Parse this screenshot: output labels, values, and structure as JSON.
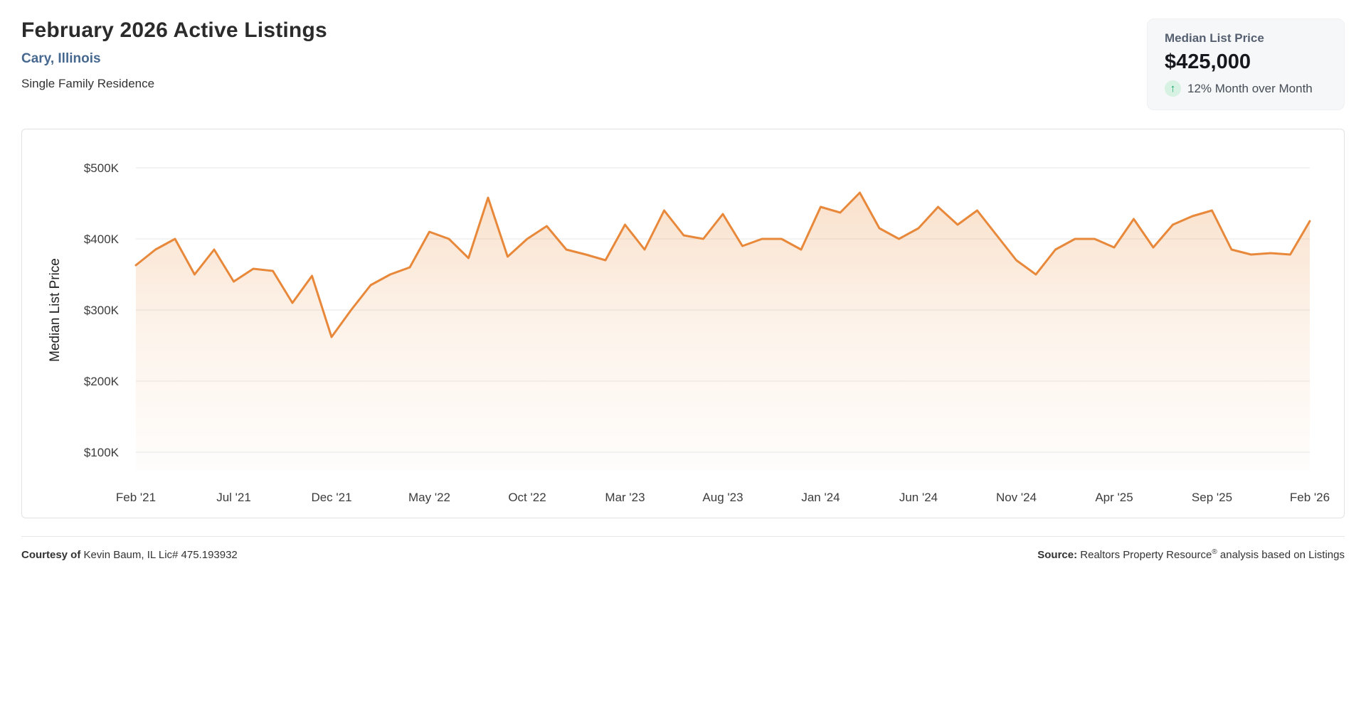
{
  "header": {
    "title": "February 2026 Active Listings",
    "location": "Cary, Illinois",
    "property_type": "Single Family Residence"
  },
  "stat_card": {
    "label": "Median List Price",
    "value": "$425,000",
    "arrow_icon": "arrow-up-icon",
    "arrow_glyph": "↑",
    "change": "12% Month over Month",
    "change_icon_color": "#13a467",
    "change_icon_bg": "#d7f2e3"
  },
  "chart_data": {
    "type": "area",
    "title": "",
    "xlabel": "",
    "ylabel": "Median List Price",
    "x": [
      "Feb '21",
      "Mar '21",
      "Apr '21",
      "May '21",
      "Jun '21",
      "Jul '21",
      "Aug '21",
      "Sep '21",
      "Oct '21",
      "Nov '21",
      "Dec '21",
      "Jan '22",
      "Feb '22",
      "Mar '22",
      "Apr '22",
      "May '22",
      "Jun '22",
      "Jul '22",
      "Aug '22",
      "Sep '22",
      "Oct '22",
      "Nov '22",
      "Dec '22",
      "Jan '23",
      "Feb '23",
      "Mar '23",
      "Apr '23",
      "May '23",
      "Jun '23",
      "Jul '23",
      "Aug '23",
      "Sep '23",
      "Oct '23",
      "Nov '23",
      "Dec '23",
      "Jan '24",
      "Feb '24",
      "Mar '24",
      "Apr '24",
      "May '24",
      "Jun '24",
      "Jul '24",
      "Aug '24",
      "Sep '24",
      "Oct '24",
      "Nov '24",
      "Dec '24",
      "Jan '25",
      "Feb '25",
      "Mar '25",
      "Apr '25",
      "May '25",
      "Jun '25",
      "Jul '25",
      "Aug '25",
      "Sep '25",
      "Oct '25",
      "Nov '25",
      "Dec '25",
      "Jan '26",
      "Feb '26"
    ],
    "values": [
      363,
      385,
      400,
      350,
      385,
      340,
      358,
      355,
      310,
      348,
      262,
      300,
      335,
      350,
      360,
      410,
      400,
      373,
      458,
      375,
      400,
      418,
      385,
      378,
      370,
      420,
      385,
      440,
      405,
      400,
      435,
      390,
      400,
      400,
      385,
      445,
      437,
      465,
      415,
      400,
      415,
      445,
      420,
      440,
      405,
      370,
      350,
      385,
      400,
      400,
      388,
      428,
      388,
      420,
      432,
      440,
      385,
      378,
      380,
      378,
      425
    ],
    "units": "thousand USD",
    "ylim": [
      75,
      525
    ],
    "yticks": [
      100,
      200,
      300,
      400,
      500
    ],
    "ytick_labels": [
      "$100K",
      "$200K",
      "$300K",
      "$400K",
      "$500K"
    ],
    "xtick_every": 5,
    "xtick_labels": [
      "Feb '21",
      "Jul '21",
      "Dec '21",
      "May '22",
      "Oct '22",
      "Mar '23",
      "Aug '23",
      "Jan '24",
      "Jun '24",
      "Nov '24",
      "Apr '25",
      "Sep '25",
      "Feb '26"
    ],
    "grid": true,
    "legend": false,
    "line_color": "#e8883b",
    "fill_color": "#ec9a53"
  },
  "footer": {
    "courtesy_label": "Courtesy of",
    "courtesy_text": "Kevin Baum, IL Lic# 475.193932",
    "source_label": "Source:",
    "source_name": "Realtors Property Resource",
    "source_reg": "®",
    "source_rest": " analysis based on Listings"
  }
}
